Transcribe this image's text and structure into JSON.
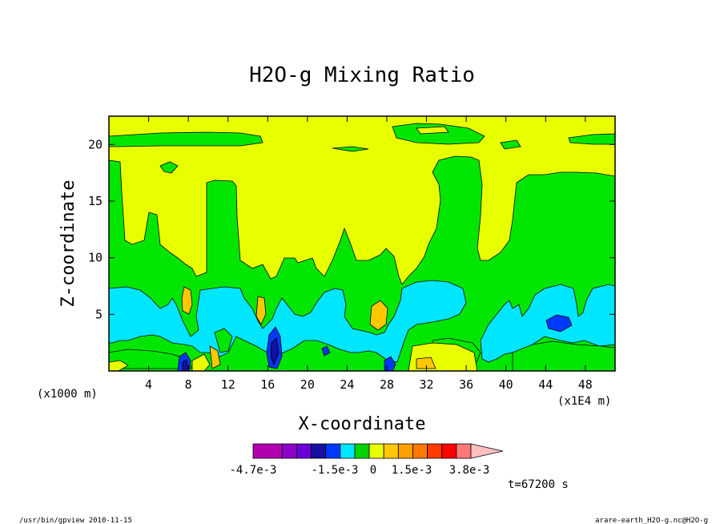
{
  "chart_data": {
    "type": "heatmap",
    "title": "H2O-g Mixing Ratio",
    "xlabel": "X-coordinate",
    "ylabel": "Z-coordinate",
    "x_unit_left": "(x1000 m)",
    "x_unit_right": "(x1E4 m)",
    "xlim": [
      0,
      51
    ],
    "ylim": [
      0,
      22.5
    ],
    "x_ticks": [
      4,
      8,
      12,
      16,
      20,
      24,
      28,
      32,
      36,
      40,
      44,
      48
    ],
    "y_ticks": [
      5,
      10,
      15,
      20
    ],
    "time_label": "t=67200 s",
    "colorbar": {
      "colors": [
        "#b000b0",
        "#8c00c8",
        "#6a00d8",
        "#1410a0",
        "#0038ff",
        "#00e6ff",
        "#00d200",
        "#e8ff00",
        "#ffc800",
        "#ffa000",
        "#ff7800",
        "#ff3c00",
        "#ff0000",
        "#ff7878",
        "#ffc0c0"
      ],
      "labels": [
        "-4.7e-3",
        "-1.5e-3",
        "0",
        "1.5e-3",
        "3.8e-3"
      ]
    },
    "palette": {
      "yellow": "#e8ff00",
      "green": "#00e600",
      "cyan": "#00e6ff",
      "blue": "#0038ff",
      "navy": "#1410a0",
      "orange": "#ffc800"
    }
  },
  "footer": {
    "left": "/usr/bin/gpview   2010-11-15",
    "right": "arare-earth_H2O-g.nc@H2O-g"
  }
}
